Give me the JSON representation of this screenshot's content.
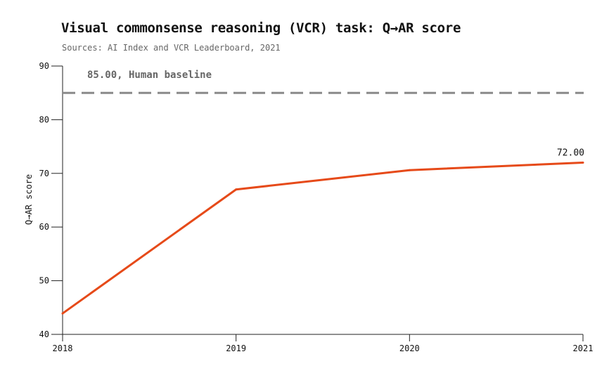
{
  "chart_data": {
    "type": "line",
    "title": "Visual commonsense reasoning (VCR) task: Q→AR score",
    "subtitle": "Sources: AI Index and VCR Leaderboard, 2021",
    "xlabel": "",
    "ylabel": "Q→AR score",
    "x": [
      2018,
      2019,
      2020,
      2021
    ],
    "xlim": [
      2018,
      2021
    ],
    "ylim": [
      40,
      90
    ],
    "yticks": [
      40,
      50,
      60,
      70,
      80,
      90
    ],
    "xticks": [
      2018,
      2019,
      2020,
      2021
    ],
    "series": [
      {
        "values": [
          43.9,
          67.0,
          70.6,
          72.0
        ],
        "color": "#e64a19"
      }
    ],
    "reference_line": {
      "value": 85.0,
      "label": "85.00, Human baseline",
      "color": "#8a8a8a",
      "style": "dashed"
    },
    "annotations": [
      {
        "x": 2021,
        "y": 72.0,
        "text": "72.00"
      }
    ],
    "grid": false,
    "legend": "none"
  }
}
